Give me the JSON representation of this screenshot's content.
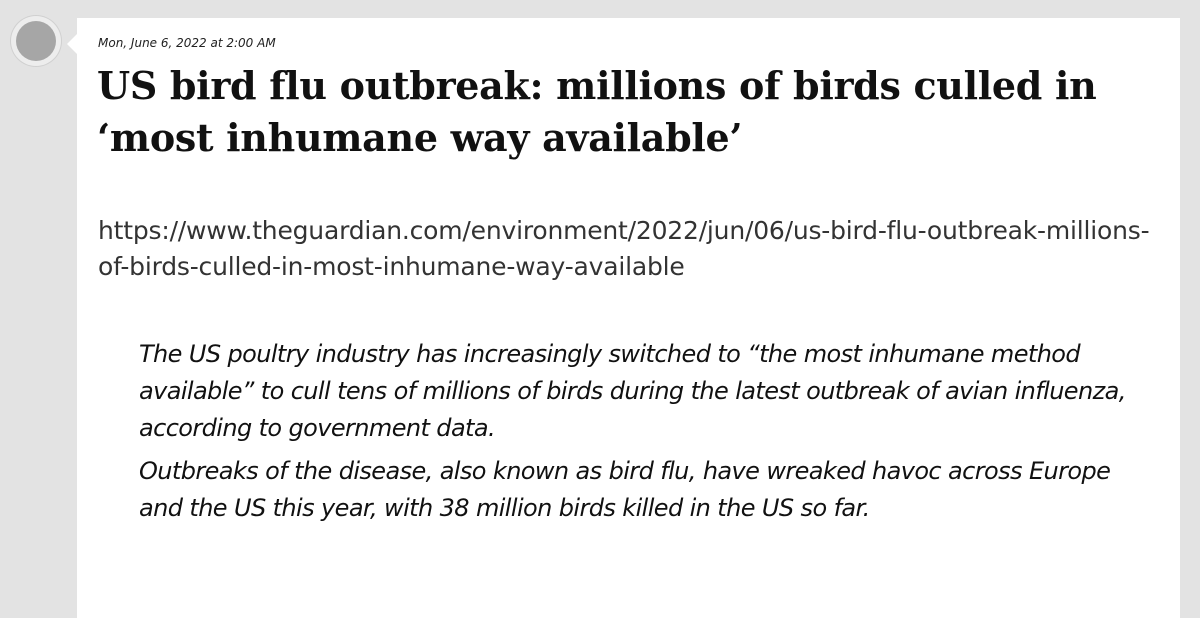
{
  "post": {
    "timestamp": "Mon, June 6, 2022 at 2:00 AM",
    "title": "US bird flu outbreak: millions of birds culled in ‘most inhumane way available’",
    "url": "https://www.theguardian.com/environment/2022/jun/06/us-bird-flu-outbreak-millions-of-birds-culled-in-most-inhumane-way-available",
    "quote_paragraphs": [
      "The US poultry industry has increasingly switched to “the most inhumane method available” to cull tens of millions of birds during the latest outbreak of avian influenza, according to government data.",
      "Outbreaks of the disease, also known as bird flu, have wreaked havoc across Europe and the US this year, with 38 million birds killed in the US so far."
    ]
  },
  "colors": {
    "page_background": "#e3e3e3",
    "card_background": "#ffffff",
    "avatar": "#a6a6a6",
    "text": "#111111",
    "link_text": "#333333"
  }
}
